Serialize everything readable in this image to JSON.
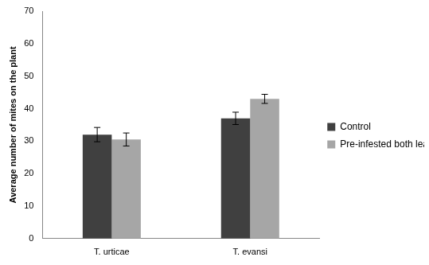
{
  "chart_data": {
    "type": "bar",
    "y_label": "Average number of mites on the plant",
    "categories": [
      "T. urticae",
      "T. evansi"
    ],
    "series": [
      {
        "name": "Control",
        "color": "#404040",
        "values": [
          32,
          37
        ],
        "errors": [
          2.2,
          1.9
        ]
      },
      {
        "name": "Pre-infested both leaves",
        "color": "#a6a6a6",
        "values": [
          30.5,
          43
        ],
        "errors": [
          2.0,
          1.4
        ]
      }
    ],
    "ylim": [
      0,
      70
    ],
    "yticks": [
      0,
      10,
      20,
      30,
      40,
      50,
      60,
      70
    ],
    "grid": false,
    "legend": "right"
  }
}
